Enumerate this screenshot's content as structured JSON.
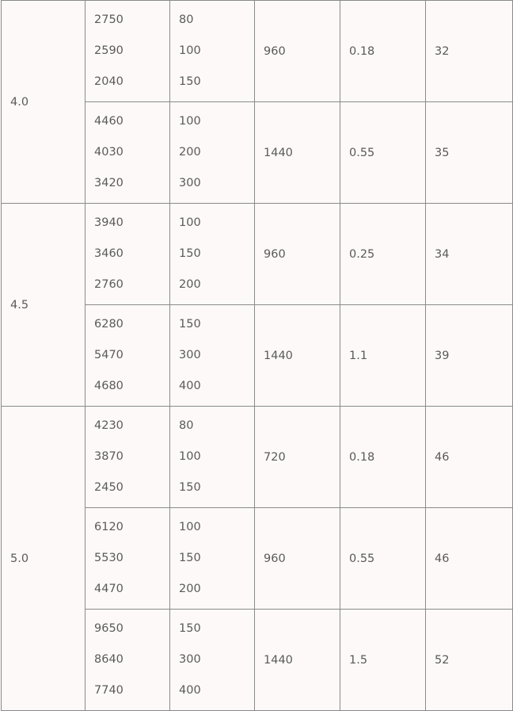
{
  "table": {
    "groups": [
      {
        "label": "4.0",
        "rows": [
          {
            "col2": [
              "2750",
              "2590",
              "2040"
            ],
            "col3": [
              "80",
              "100",
              "150"
            ],
            "col4": "960",
            "col5": "0.18",
            "col6": "32"
          },
          {
            "col2": [
              "4460",
              "4030",
              "3420"
            ],
            "col3": [
              "100",
              "200",
              "300"
            ],
            "col4": "1440",
            "col5": "0.55",
            "col6": "35"
          }
        ]
      },
      {
        "label": "4.5",
        "rows": [
          {
            "col2": [
              "3940",
              "3460",
              "2760"
            ],
            "col3": [
              "100",
              "150",
              "200"
            ],
            "col4": "960",
            "col5": "0.25",
            "col6": "34"
          },
          {
            "col2": [
              "6280",
              "5470",
              "4680"
            ],
            "col3": [
              "150",
              "300",
              "400"
            ],
            "col4": "1440",
            "col5": "1.1",
            "col6": "39"
          }
        ]
      },
      {
        "label": "5.0",
        "rows": [
          {
            "col2": [
              "4230",
              "3870",
              "2450"
            ],
            "col3": [
              "80",
              "100",
              "150"
            ],
            "col4": "720",
            "col5": "0.18",
            "col6": "46"
          },
          {
            "col2": [
              "6120",
              "5530",
              "4470"
            ],
            "col3": [
              "100",
              "150",
              "200"
            ],
            "col4": "960",
            "col5": "0.55",
            "col6": "46"
          },
          {
            "col2": [
              "9650",
              "8640",
              "7740"
            ],
            "col3": [
              "150",
              "300",
              "400"
            ],
            "col4": "1440",
            "col5": "1.5",
            "col6": "52"
          }
        ]
      }
    ]
  }
}
